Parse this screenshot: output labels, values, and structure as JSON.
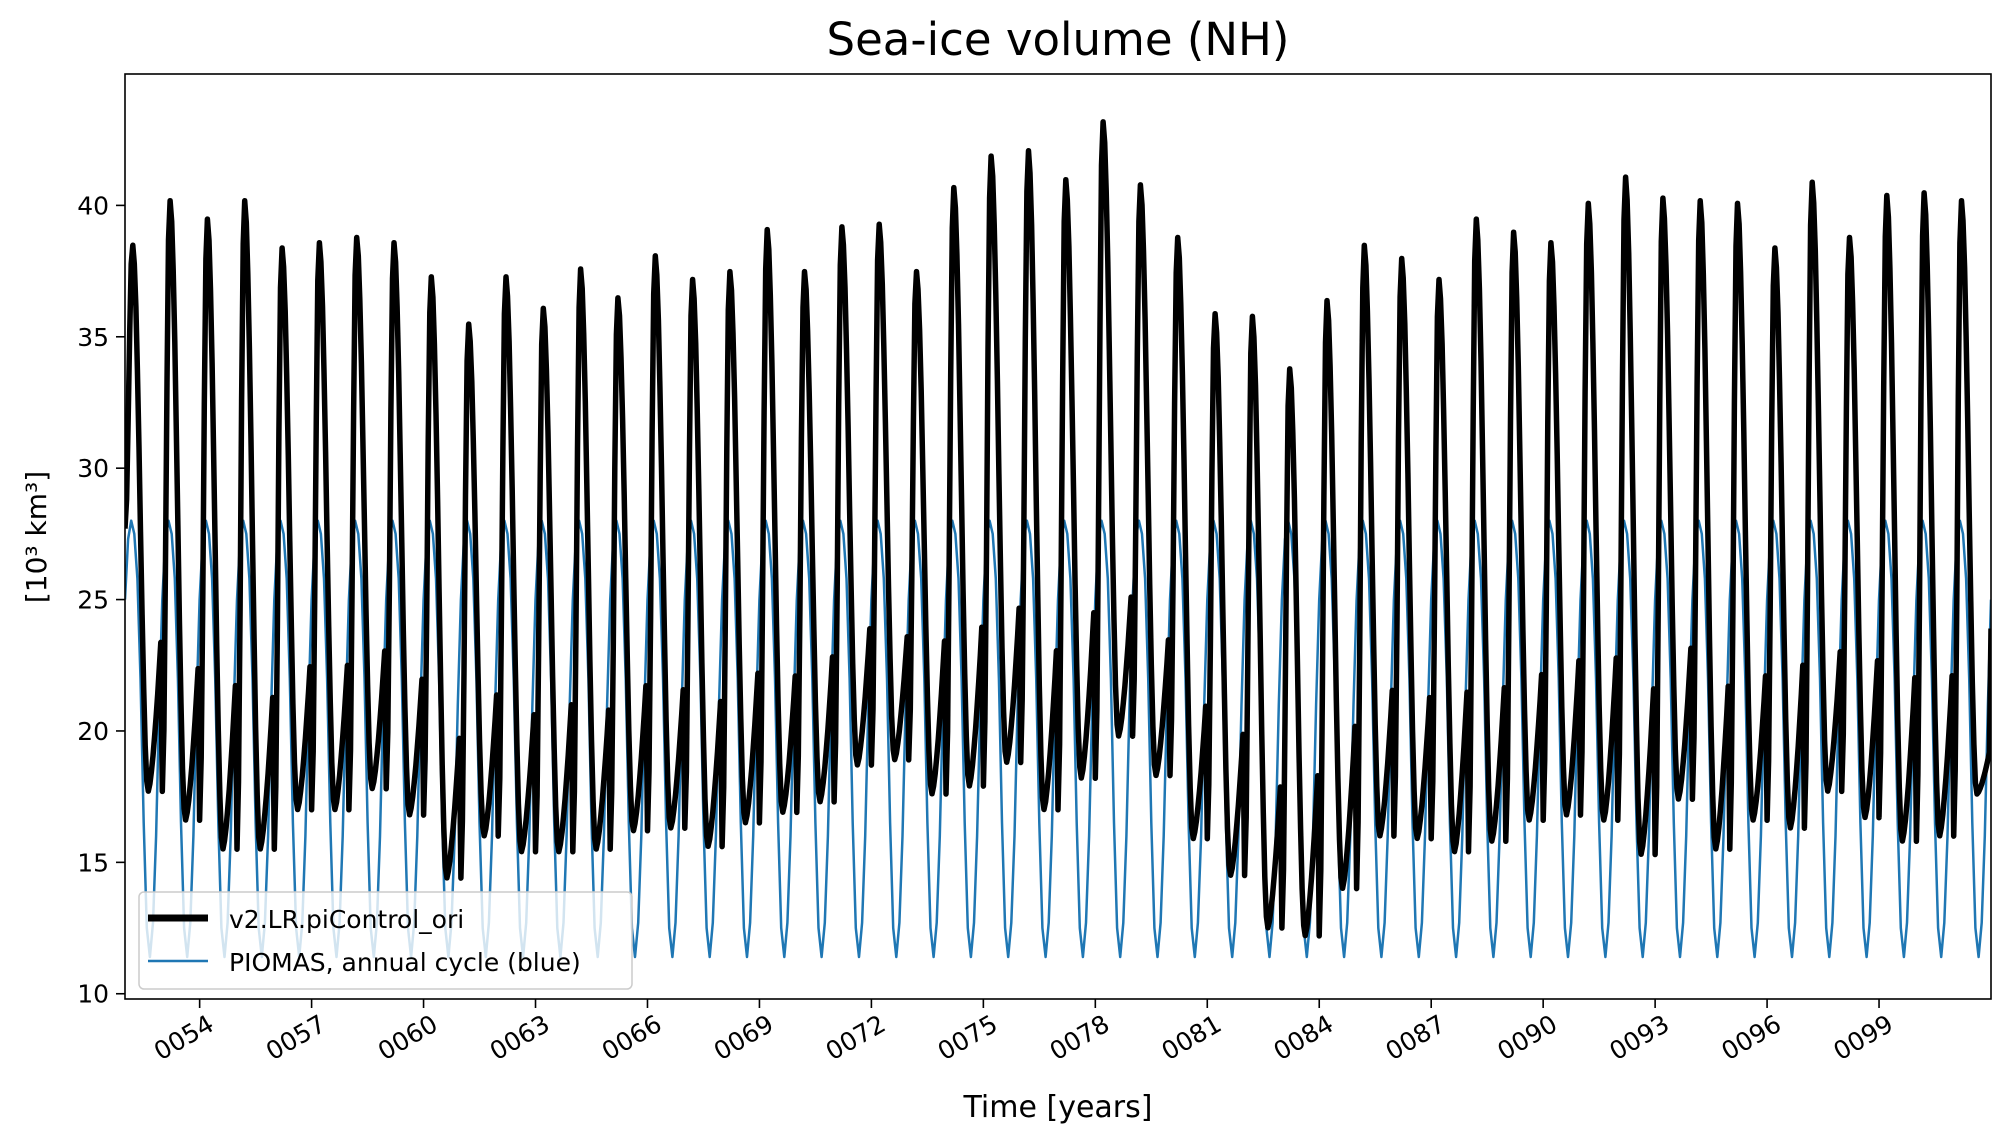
{
  "chart_data": {
    "type": "line",
    "title": "Sea-ice volume (NH)",
    "xlabel": "Time [years]",
    "ylabel": "[10³ km³]",
    "xlim": [
      52,
      102
    ],
    "ylim": [
      9.8,
      45.0
    ],
    "x_ticks": [
      "0054",
      "0057",
      "0060",
      "0063",
      "0066",
      "0069",
      "0072",
      "0075",
      "0078",
      "0081",
      "0084",
      "0087",
      "0090",
      "0093",
      "0096",
      "0099"
    ],
    "x_tick_values": [
      54,
      57,
      60,
      63,
      66,
      69,
      72,
      75,
      78,
      81,
      84,
      87,
      90,
      93,
      96,
      99
    ],
    "y_ticks": [
      10,
      15,
      20,
      25,
      30,
      35,
      40
    ],
    "grid": false,
    "legend_position": "lower-left",
    "series": [
      {
        "name": "v2.LR.piControl_ori",
        "color": "#000000",
        "description": "model monthly series, one seasonal cycle per year (max/min per year)",
        "years": [
          52,
          53,
          54,
          55,
          56,
          57,
          58,
          59,
          60,
          61,
          62,
          63,
          64,
          65,
          66,
          67,
          68,
          69,
          70,
          71,
          72,
          73,
          74,
          75,
          76,
          77,
          78,
          79,
          80,
          81,
          82,
          83,
          84,
          85,
          86,
          87,
          88,
          89,
          90,
          91,
          92,
          93,
          94,
          95,
          96,
          97,
          98,
          99,
          100,
          101
        ],
        "max": [
          38.5,
          40.2,
          39.5,
          40.2,
          38.4,
          38.6,
          38.8,
          38.6,
          37.3,
          35.5,
          37.3,
          36.1,
          37.6,
          36.5,
          38.1,
          37.2,
          37.5,
          39.1,
          37.5,
          39.2,
          39.3,
          37.5,
          40.7,
          41.9,
          42.1,
          41.0,
          43.2,
          40.8,
          38.8,
          35.9,
          35.8,
          33.8,
          36.4,
          38.5,
          38.0,
          37.2,
          39.5,
          39.0,
          38.6,
          40.1,
          41.1,
          40.3,
          40.2,
          40.1,
          38.4,
          40.9,
          38.8,
          40.4,
          40.5,
          40.2
        ],
        "min": [
          17.7,
          16.6,
          15.5,
          15.5,
          17.0,
          17.0,
          17.8,
          16.8,
          14.4,
          16.0,
          15.4,
          15.4,
          15.5,
          16.2,
          16.3,
          15.6,
          16.5,
          16.9,
          17.3,
          18.7,
          18.9,
          17.6,
          17.9,
          18.8,
          17.0,
          18.2,
          19.8,
          18.3,
          15.9,
          14.5,
          12.5,
          12.2,
          14.0,
          16.0,
          15.9,
          15.4,
          15.8,
          16.6,
          16.8,
          16.6,
          15.3,
          17.4,
          15.5,
          16.6,
          16.3,
          17.7,
          16.7,
          15.8,
          16.0,
          17.6
        ],
        "end_value": 23.9
      },
      {
        "name": "PIOMAS, annual cycle (blue)",
        "color": "#1f77b4",
        "description": "climatological annual cycle repeated each year",
        "monthly_values": [
          25.0,
          27.3,
          28.0,
          27.5,
          25.8,
          22.0,
          16.5,
          12.5,
          11.4,
          12.7,
          16.0,
          21.0
        ]
      }
    ]
  }
}
